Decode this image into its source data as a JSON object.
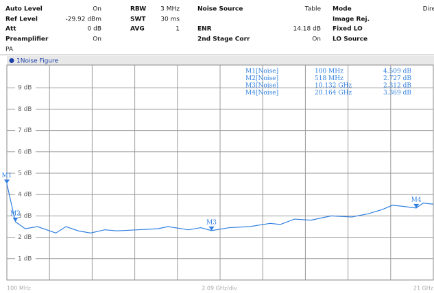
{
  "header": {
    "groups": [
      [
        [
          "Auto Level",
          "On"
        ],
        [
          "Ref Level",
          "-29.92 dBm"
        ],
        [
          "Att",
          "0 dB"
        ],
        [
          "Preamplifier",
          "On"
        ]
      ],
      [
        [
          "RBW",
          "3 MHz"
        ],
        [
          "SWT",
          "30 ms"
        ],
        [
          "AVG",
          "1"
        ]
      ],
      [
        [
          "Noise Source",
          "Table"
        ],
        null,
        [
          "ENR",
          "14.18 dB"
        ],
        [
          "2nd Stage Corr",
          "On"
        ]
      ],
      [
        [
          "Mode",
          "Direc"
        ],
        [
          "Image Rej.",
          ".."
        ],
        [
          "Fixed LO",
          ".."
        ],
        [
          "LO Source",
          ".."
        ]
      ]
    ],
    "note": "PA"
  },
  "chart_data": {
    "type": "line",
    "title": "1Noise Figure",
    "x_axis_label": "2.09 GHz/div",
    "xlim": [
      0.1,
      21
    ],
    "ylim": [
      0,
      10
    ],
    "xticks": [
      {
        "value": 0.1,
        "label": "100 MHz"
      },
      {
        "value": 21,
        "label": "21 GHz"
      }
    ],
    "yticks": [
      {
        "value": 1,
        "label": "1 dB"
      },
      {
        "value": 2,
        "label": "2 dB"
      },
      {
        "value": 3,
        "label": "3 dB"
      },
      {
        "value": 4,
        "label": "4 dB"
      },
      {
        "value": 5,
        "label": "5 dB"
      },
      {
        "value": 6,
        "label": "6 dB"
      },
      {
        "value": 7,
        "label": "7 dB"
      },
      {
        "value": 8,
        "label": "8 dB"
      },
      {
        "value": 9,
        "label": "9 dB"
      }
    ],
    "grid": true,
    "x": [
      0.1,
      0.518,
      1.0,
      1.6,
      2.5,
      3.0,
      3.6,
      4.2,
      4.9,
      5.5,
      6.5,
      7.5,
      8.0,
      9.0,
      9.6,
      10.132,
      11.0,
      12.0,
      13.0,
      13.5,
      14.2,
      15.0,
      16.0,
      17.0,
      17.8,
      18.5,
      19.0,
      19.5,
      20.164,
      20.5,
      21.0
    ],
    "series": [
      {
        "name": "1Noise Figure",
        "color": "#2f7fe0",
        "values": [
          4.509,
          2.727,
          2.4,
          2.5,
          2.2,
          2.5,
          2.3,
          2.2,
          2.35,
          2.3,
          2.35,
          2.4,
          2.5,
          2.35,
          2.45,
          2.312,
          2.45,
          2.5,
          2.65,
          2.6,
          2.85,
          2.8,
          3.0,
          2.95,
          3.1,
          3.3,
          3.5,
          3.45,
          3.369,
          3.6,
          3.55
        ]
      }
    ],
    "markers": [
      {
        "label": "M1",
        "x": 0.1,
        "y": 4.509,
        "table": [
          "M1[Noise]",
          "100 MHz",
          "4.509 dB"
        ]
      },
      {
        "label": "M2",
        "x": 0.518,
        "y": 2.727,
        "table": [
          "M2[Noise]",
          "518 MHz",
          "2.727 dB"
        ]
      },
      {
        "label": "M3",
        "x": 10.132,
        "y": 2.312,
        "table": [
          "M3[Noise]",
          "10.132 GHz",
          "2.312 dB"
        ]
      },
      {
        "label": "M4",
        "x": 20.164,
        "y": 3.369,
        "table": [
          "M4[Noise]",
          "20.164 GHz",
          "3.369 dB"
        ]
      }
    ]
  }
}
